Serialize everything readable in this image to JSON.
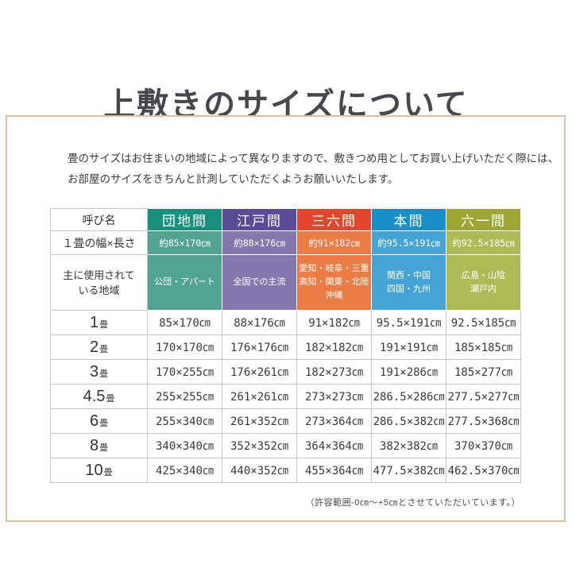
{
  "page": {
    "title": "上敷きのサイズについて",
    "intro_line1": "畳のサイズはお住まいの地域によって異なりますので、敷きつめ用としてお買い上げいただく際には、",
    "intro_line2": "お部屋のサイズをきちんと計測していただくようお願いいたします。",
    "footnote": "（許容範囲-0㎝～+5㎝とさせていただいています。）",
    "frame_border_color": "#dcc19c"
  },
  "table": {
    "row_headers": {
      "name": "呼び名",
      "per_mat": "１畳の幅×長さ",
      "regions_label": [
        "主に使用されて",
        "いる地域"
      ]
    },
    "columns": [
      {
        "name": "団地間",
        "per_mat": "約85×170㎝",
        "regions": [
          "公団・アパート"
        ],
        "header_color": "#17907d",
        "body_color": "#52a492"
      },
      {
        "name": "江戸間",
        "per_mat": "約88×176㎝",
        "regions": [
          "全国での主流"
        ],
        "header_color": "#5b4b94",
        "body_color": "#8478ae"
      },
      {
        "name": "三六間",
        "per_mat": "約91×182㎝",
        "regions": [
          "愛知・岐阜・三重",
          "高知・関東・北陸",
          "沖縄"
        ],
        "header_color": "#e2462e",
        "body_color": "#ec7c45"
      },
      {
        "name": "本間",
        "per_mat": "約95.5×191㎝",
        "regions": [
          "関西・中国",
          "四国・九州"
        ],
        "header_color": "#1990c8",
        "body_color": "#46a3d6"
      },
      {
        "name": "六一間",
        "per_mat": "約92.5×185㎝",
        "regions": [
          "広島・山陰",
          "瀬戸内"
        ],
        "header_color": "#9da834",
        "body_color": "#aeba56"
      }
    ],
    "mat_rows": [
      {
        "size": "1",
        "tatami": "畳",
        "values": [
          "85×170㎝",
          "88×176㎝",
          "91×182㎝",
          "95.5×191㎝",
          "92.5×185㎝"
        ]
      },
      {
        "size": "2",
        "tatami": "畳",
        "values": [
          "170×170㎝",
          "176×176㎝",
          "182×182㎝",
          "191×191㎝",
          "185×185㎝"
        ]
      },
      {
        "size": "3",
        "tatami": "畳",
        "values": [
          "170×255㎝",
          "176×261㎝",
          "182×273㎝",
          "191×286㎝",
          "185×277㎝"
        ]
      },
      {
        "size": "4.5",
        "tatami": "畳",
        "values": [
          "255×255㎝",
          "261×261㎝",
          "273×273㎝",
          "286.5×286㎝",
          "277.5×277㎝"
        ]
      },
      {
        "size": "6",
        "tatami": "畳",
        "values": [
          "255×340㎝",
          "261×352㎝",
          "273×364㎝",
          "286.5×382㎝",
          "277.5×368㎝"
        ]
      },
      {
        "size": "8",
        "tatami": "畳",
        "values": [
          "340×340㎝",
          "352×352㎝",
          "364×364㎝",
          "382×382㎝",
          "370×370㎝"
        ]
      },
      {
        "size": "10",
        "tatami": "畳",
        "values": [
          "425×340㎝",
          "440×352㎝",
          "455×364㎝",
          "477.5×382㎝",
          "462.5×370㎝"
        ]
      }
    ]
  }
}
